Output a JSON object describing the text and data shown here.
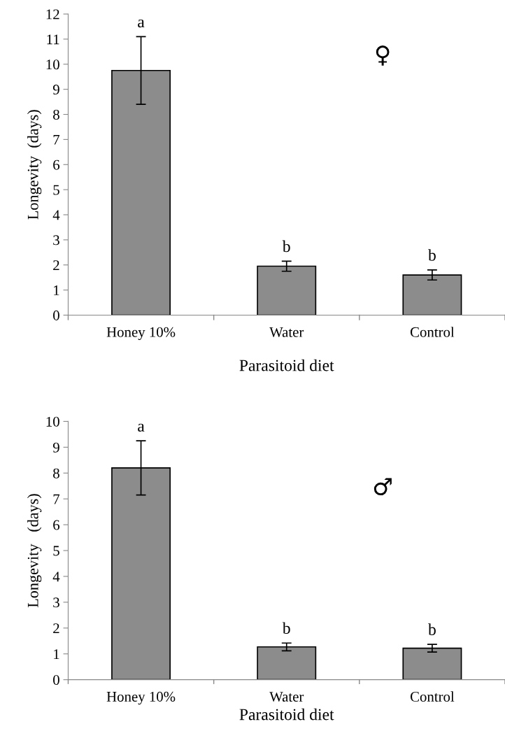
{
  "chart_data": [
    {
      "type": "bar",
      "categories": [
        "Honey 10%",
        "Water",
        "Control"
      ],
      "values": [
        9.75,
        1.95,
        1.6
      ],
      "errors": [
        1.35,
        0.2,
        0.2
      ],
      "color": "#8c8c8c",
      "ylabel": "Longevity  (days)",
      "xlabel": "Parasitoid diet",
      "ylim": [
        0,
        12
      ],
      "yticks": [
        0,
        1,
        2,
        3,
        4,
        5,
        6,
        7,
        8,
        9,
        10,
        11,
        12
      ],
      "grid": false,
      "legend": false,
      "annotations": [
        "a",
        "b",
        "b",
        "♀"
      ]
    },
    {
      "type": "bar",
      "categories": [
        "Honey 10%",
        "Water",
        "Control"
      ],
      "values": [
        8.2,
        1.27,
        1.22
      ],
      "errors": [
        1.05,
        0.15,
        0.15
      ],
      "color": "#8c8c8c",
      "ylabel": "Longevity   (days)",
      "xlabel": "Parasitoid diet",
      "ylim": [
        0,
        10
      ],
      "yticks": [
        0,
        1,
        2,
        3,
        4,
        5,
        6,
        7,
        8,
        9,
        10
      ],
      "grid": false,
      "legend": false,
      "annotations": [
        "a",
        "b",
        "b",
        "♂"
      ]
    }
  ]
}
